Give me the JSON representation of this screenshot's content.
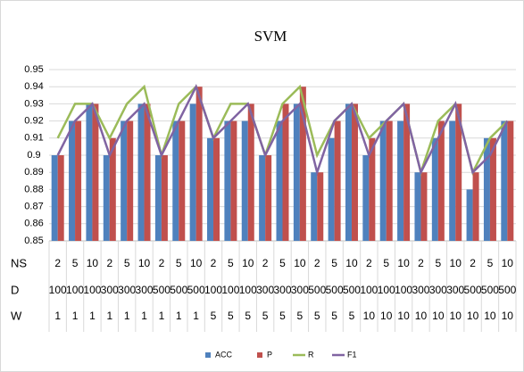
{
  "chart_data": {
    "type": "bar-line",
    "title": "SVM",
    "category_levels": [
      {
        "name": "NS",
        "labels": [
          "2",
          "5",
          "10",
          "2",
          "5",
          "10",
          "2",
          "5",
          "10",
          "2",
          "5",
          "10",
          "2",
          "5",
          "10",
          "2",
          "5",
          "10",
          "2",
          "5",
          "10",
          "2",
          "5",
          "10",
          "2",
          "5",
          "10"
        ]
      },
      {
        "name": "D",
        "labels": [
          "100",
          "100",
          "100",
          "300",
          "300",
          "300",
          "500",
          "500",
          "500",
          "100",
          "100",
          "100",
          "300",
          "300",
          "300",
          "500",
          "500",
          "500",
          "100",
          "100",
          "100",
          "300",
          "300",
          "300",
          "500",
          "500",
          "500"
        ]
      },
      {
        "name": "W",
        "labels": [
          "1",
          "1",
          "1",
          "1",
          "1",
          "1",
          "1",
          "1",
          "1",
          "5",
          "5",
          "5",
          "5",
          "5",
          "5",
          "5",
          "5",
          "5",
          "10",
          "10",
          "10",
          "10",
          "10",
          "10",
          "10",
          "10",
          "10"
        ]
      }
    ],
    "series": [
      {
        "name": "ACC",
        "kind": "bar",
        "color": "#4f81bd",
        "values": [
          0.9,
          0.92,
          0.93,
          0.9,
          0.92,
          0.93,
          0.9,
          0.92,
          0.93,
          0.91,
          0.92,
          0.92,
          0.9,
          0.92,
          0.93,
          0.89,
          0.91,
          0.93,
          0.9,
          0.92,
          0.92,
          0.89,
          0.91,
          0.92,
          0.88,
          0.91,
          0.92
        ]
      },
      {
        "name": "P",
        "kind": "bar",
        "color": "#c0504d",
        "values": [
          0.9,
          0.92,
          0.93,
          0.91,
          0.92,
          0.93,
          0.9,
          0.92,
          0.94,
          0.91,
          0.92,
          0.93,
          0.9,
          0.93,
          0.94,
          0.89,
          0.92,
          0.93,
          0.91,
          0.92,
          0.93,
          0.89,
          0.92,
          0.93,
          0.89,
          0.91,
          0.92
        ]
      },
      {
        "name": "R",
        "kind": "line",
        "color": "#9bbb59",
        "values": [
          0.91,
          0.93,
          0.93,
          0.91,
          0.93,
          0.94,
          0.9,
          0.93,
          0.94,
          0.91,
          0.93,
          0.93,
          0.9,
          0.93,
          0.94,
          0.9,
          0.92,
          0.93,
          0.91,
          0.92,
          0.93,
          0.89,
          0.92,
          0.93,
          0.89,
          0.91,
          0.92
        ]
      },
      {
        "name": "F1",
        "kind": "line",
        "color": "#8064a2",
        "values": [
          0.9,
          0.92,
          0.93,
          0.9,
          0.92,
          0.93,
          0.9,
          0.92,
          0.94,
          0.91,
          0.92,
          0.93,
          0.9,
          0.92,
          0.93,
          0.89,
          0.92,
          0.93,
          0.9,
          0.92,
          0.93,
          0.89,
          0.91,
          0.93,
          0.89,
          0.9,
          0.92
        ]
      }
    ],
    "ylim": [
      0.85,
      0.95
    ],
    "yticks": [
      0.85,
      0.86,
      0.87,
      0.88,
      0.89,
      0.9,
      0.91,
      0.92,
      0.93,
      0.94,
      0.95
    ],
    "grid": true,
    "legend": "bottom"
  }
}
